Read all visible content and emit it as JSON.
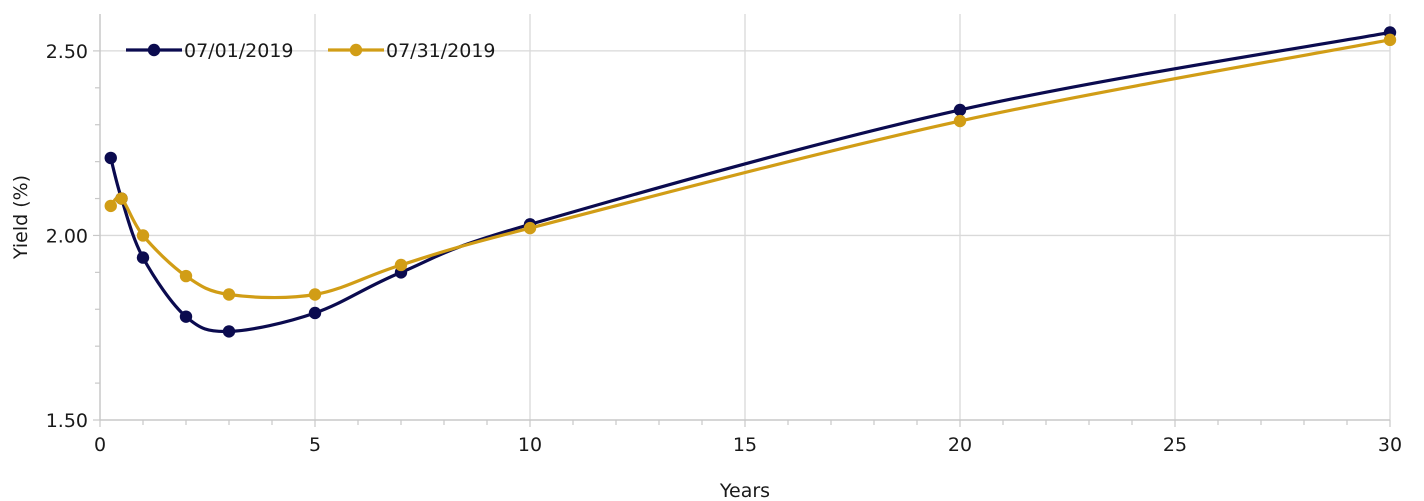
{
  "chart_data": {
    "type": "line",
    "xlabel": "Years",
    "ylabel": "Yield (%)",
    "xlim": [
      0,
      30
    ],
    "ylim": [
      1.5,
      2.6
    ],
    "xticks": [
      0,
      5,
      10,
      15,
      20,
      25,
      30
    ],
    "xtick_labels": [
      "0",
      "5",
      "10",
      "15",
      "20",
      "25",
      "30"
    ],
    "yticks": [
      1.5,
      2.0,
      2.5
    ],
    "ytick_labels": [
      "1.50",
      "2.00",
      "2.50"
    ],
    "grid": true,
    "legend_position": "top-left",
    "series": [
      {
        "name": "07/01/2019",
        "color": "#0b0b4f",
        "x": [
          0.25,
          0.5,
          1,
          2,
          3,
          5,
          7,
          10,
          20,
          30
        ],
        "y": [
          2.21,
          2.1,
          1.94,
          1.78,
          1.74,
          1.79,
          1.9,
          2.03,
          2.34,
          2.55
        ]
      },
      {
        "name": "07/31/2019",
        "color": "#d19d16",
        "x": [
          0.25,
          0.5,
          1,
          2,
          3,
          5,
          7,
          10,
          20,
          30
        ],
        "y": [
          2.08,
          2.1,
          2.0,
          1.89,
          1.84,
          1.84,
          1.92,
          2.02,
          2.31,
          2.53
        ]
      }
    ]
  }
}
